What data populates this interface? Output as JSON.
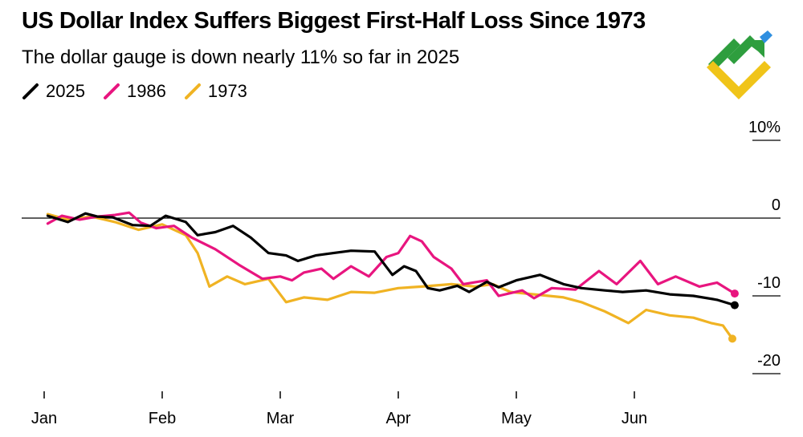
{
  "chart_data": {
    "type": "line",
    "title": "US Dollar Index Suffers Biggest First-Half Loss Since 1973",
    "subtitle": "The dollar gauge is down nearly 11% so far in 2025",
    "xlabel": "",
    "ylabel": "",
    "x_ticks": [
      "Jan",
      "Feb",
      "Mar",
      "Apr",
      "May",
      "Jun"
    ],
    "y_ticks": [
      "10%",
      "0",
      "-10",
      "-20"
    ],
    "y_tick_values": [
      10,
      0,
      -10,
      -20
    ],
    "ylim": [
      -20,
      10
    ],
    "xlim": [
      0,
      6
    ],
    "legend_position": "top-left",
    "series": [
      {
        "name": "2025",
        "color": "#000000",
        "x": [
          0.03,
          0.2,
          0.35,
          0.45,
          0.58,
          0.75,
          0.9,
          1.03,
          1.2,
          1.3,
          1.45,
          1.6,
          1.75,
          1.9,
          2.05,
          2.15,
          2.3,
          2.45,
          2.6,
          2.8,
          2.95,
          3.05,
          3.15,
          3.25,
          3.35,
          3.5,
          3.6,
          3.75,
          3.85,
          4.0,
          4.2,
          4.4,
          4.55,
          4.75,
          4.9,
          5.1,
          5.3,
          5.5,
          5.7,
          5.85
        ],
        "values": [
          0.3,
          -0.5,
          0.6,
          0.2,
          0.1,
          -0.9,
          -1.0,
          0.3,
          -0.5,
          -2.2,
          -1.8,
          -1.0,
          -2.5,
          -4.5,
          -4.8,
          -5.5,
          -4.8,
          -4.5,
          -4.2,
          -4.3,
          -7.3,
          -6.2,
          -6.8,
          -9.0,
          -9.3,
          -8.7,
          -9.5,
          -8.2,
          -8.9,
          -8.0,
          -7.3,
          -8.5,
          -9.0,
          -9.3,
          -9.5,
          -9.3,
          -9.8,
          -10.0,
          -10.5,
          -11.2
        ]
      },
      {
        "name": "1986",
        "color": "#e8157f",
        "x": [
          0.03,
          0.15,
          0.3,
          0.45,
          0.6,
          0.72,
          0.82,
          0.95,
          1.1,
          1.25,
          1.45,
          1.65,
          1.85,
          2.0,
          2.1,
          2.2,
          2.35,
          2.45,
          2.6,
          2.75,
          2.9,
          3.0,
          3.1,
          3.2,
          3.3,
          3.45,
          3.55,
          3.75,
          3.85,
          4.05,
          4.15,
          4.3,
          4.5,
          4.7,
          4.85,
          5.05,
          5.2,
          5.35,
          5.55,
          5.7,
          5.85
        ],
        "values": [
          -0.7,
          0.3,
          -0.2,
          0.2,
          0.4,
          0.7,
          -0.6,
          -1.3,
          -1.0,
          -2.5,
          -4.0,
          -6.0,
          -7.8,
          -7.5,
          -8.0,
          -7.0,
          -6.5,
          -7.8,
          -6.2,
          -7.5,
          -5.0,
          -4.5,
          -2.3,
          -3.0,
          -5.0,
          -6.5,
          -8.5,
          -8.0,
          -10.0,
          -9.3,
          -10.3,
          -9.0,
          -9.2,
          -6.8,
          -8.5,
          -5.5,
          -8.5,
          -7.5,
          -8.8,
          -8.3,
          -9.7
        ]
      },
      {
        "name": "1973",
        "color": "#f0b323",
        "x": [
          0.03,
          0.2,
          0.4,
          0.6,
          0.8,
          1.0,
          1.2,
          1.3,
          1.4,
          1.55,
          1.7,
          1.9,
          2.05,
          2.2,
          2.4,
          2.6,
          2.8,
          3.0,
          3.2,
          3.45,
          3.65,
          3.8,
          3.95,
          4.15,
          4.4,
          4.55,
          4.75,
          4.95,
          5.1,
          5.3,
          5.5,
          5.65,
          5.75,
          5.83
        ],
        "values": [
          0.5,
          -0.2,
          0.2,
          -0.5,
          -1.5,
          -0.8,
          -2.2,
          -4.5,
          -8.8,
          -7.5,
          -8.5,
          -7.8,
          -10.8,
          -10.2,
          -10.5,
          -9.5,
          -9.6,
          -9.0,
          -8.8,
          -8.5,
          -8.8,
          -8.5,
          -9.5,
          -9.8,
          -10.2,
          -10.8,
          -12.0,
          -13.5,
          -11.8,
          -12.5,
          -12.8,
          -13.5,
          -13.8,
          -15.5
        ]
      }
    ]
  },
  "logo": {
    "name": "brand logo",
    "colors": [
      "#2e9e3e",
      "#f0c419",
      "#2f8fe0"
    ]
  }
}
